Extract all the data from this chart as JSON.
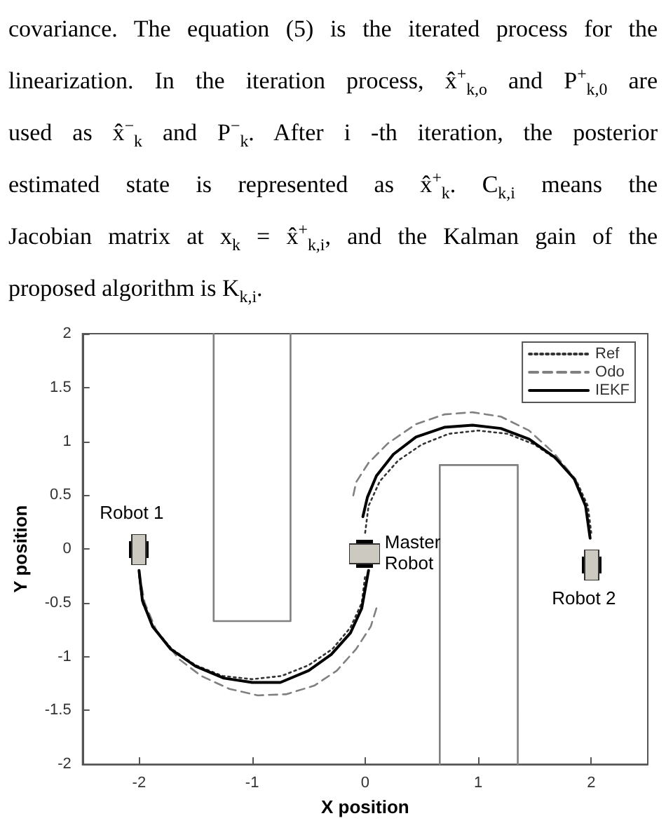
{
  "chart_data": {
    "type": "line",
    "annotations": [
      "covariance. The equation (5) is the iterated process for the",
      "linearization. In the iteration process, x̂$^{+}$$_{k,o}$ and P$^{+}$$_{k,0}$ are",
      "used as x̂$^{−}$$_{k}$ and P$^{−}$$_{k}$. After i -th iteration, the posterior",
      "estimated state is represented as x̂$^{+}$$_{k}$. C$_{k,i}$ means the",
      "Jacobian matrix at x$_{k}$ = x̂$^{+}$$_{k,i}$, and the Kalman gain of the",
      "proposed algorithm is K$_{k,i}$.",
      {
        "text": "Robot 1",
        "x": -2,
        "y": 0
      },
      {
        "text": "Master Robot",
        "x": 0,
        "y": -0.05
      },
      {
        "text": "Robot 2",
        "x": 2,
        "y": -0.15
      }
    ],
    "xlabel": "X position",
    "ylabel": "Y position",
    "xlim": [
      -2.5,
      2.5
    ],
    "ylim": [
      -2,
      2
    ],
    "xticks": [
      -2,
      -1,
      0,
      1,
      2
    ],
    "yticks": [
      -2,
      -1.5,
      -1,
      -0.5,
      0,
      0.5,
      1,
      1.5,
      2
    ],
    "grid": false,
    "legend": "top right",
    "marker": "none",
    "series": [
      {
        "name": "Ref",
        "color": "#333333",
        "line_style": "dotted",
        "x": [
          -2,
          -1.97,
          -1.87,
          -1.71,
          -1.5,
          -1.26,
          -1,
          -0.74,
          -0.5,
          -0.29,
          -0.13,
          -0.03,
          0,
          null,
          0,
          0.03,
          0.13,
          0.29,
          0.5,
          0.74,
          1,
          1.26,
          1.5,
          1.71,
          1.87,
          1.97,
          2
        ],
        "values": [
          -0.25,
          -0.5,
          -0.73,
          -0.93,
          -1.08,
          -1.18,
          -1.21,
          -1.18,
          -1.08,
          -0.93,
          -0.73,
          -0.5,
          -0.25,
          null,
          0.15,
          0.4,
          0.63,
          0.82,
          0.97,
          1.07,
          1.1,
          1.07,
          0.97,
          0.82,
          0.63,
          0.4,
          0.15
        ]
      },
      {
        "name": "Odo",
        "color": "#808080",
        "line_style": "dashed",
        "x": [
          -2,
          -1.95,
          -1.85,
          -1.65,
          -1.45,
          -1.2,
          -0.95,
          -0.7,
          -0.45,
          -0.25,
          -0.08,
          0.05,
          0.1,
          null,
          1.99,
          1.95,
          1.86,
          1.67,
          1.45,
          1.2,
          0.95,
          0.7,
          0.45,
          0.2,
          0.03,
          -0.08,
          -0.11
        ],
        "values": [
          -0.22,
          -0.5,
          -0.75,
          -1.02,
          -1.18,
          -1.3,
          -1.36,
          -1.35,
          -1.27,
          -1.13,
          -0.93,
          -0.72,
          -0.55,
          null,
          0.1,
          0.4,
          0.65,
          0.89,
          1.1,
          1.23,
          1.27,
          1.25,
          1.16,
          0.98,
          0.8,
          0.62,
          0.47
        ]
      },
      {
        "name": "IEKF",
        "color": "#000000",
        "line_style": "solid",
        "x": [
          -2,
          -1.97,
          -1.88,
          -1.72,
          -1.5,
          -1.25,
          -1,
          -0.75,
          -0.5,
          -0.3,
          -0.13,
          -0.03,
          0.03,
          null,
          -0.02,
          0.02,
          0.1,
          0.25,
          0.45,
          0.7,
          0.95,
          1.2,
          1.45,
          1.68,
          1.85,
          1.95,
          1.99
        ],
        "values": [
          -0.2,
          -0.48,
          -0.72,
          -0.93,
          -1.09,
          -1.2,
          -1.24,
          -1.24,
          -1.13,
          -0.98,
          -0.78,
          -0.55,
          -0.2,
          null,
          0.3,
          0.48,
          0.68,
          0.88,
          1.04,
          1.13,
          1.15,
          1.12,
          1.02,
          0.85,
          0.65,
          0.4,
          0.1
        ]
      },
      {
        "color": "#808080",
        "line_style": "solid",
        "x": [
          -1.34,
          -1.34,
          -0.66,
          -0.66,
          null,
          0.66,
          0.66,
          1.35,
          1.35
        ],
        "values": [
          2,
          -0.67,
          -0.67,
          2,
          null,
          -2,
          0.78,
          0.78,
          -2
        ]
      }
    ]
  }
}
